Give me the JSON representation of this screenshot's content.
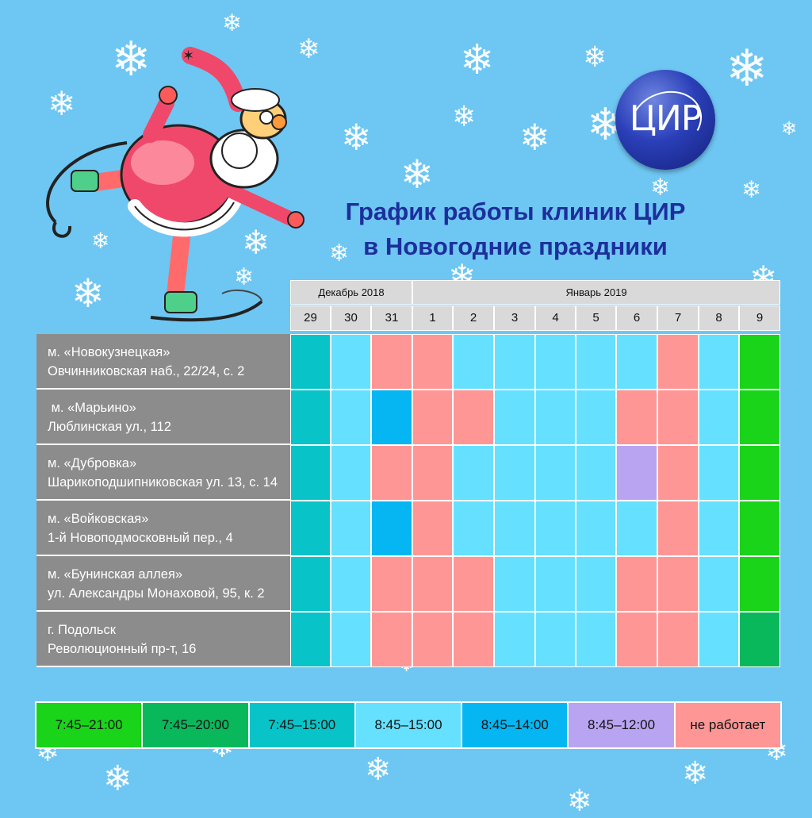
{
  "title": {
    "line1": "График работы клиник ЦИР",
    "line2": "в Новогодние праздники"
  },
  "logo": {
    "text": "ЦИР"
  },
  "months": [
    {
      "label": "Декабрь 2018",
      "span": 3
    },
    {
      "label": "Январь 2019",
      "span": 9
    }
  ],
  "days": [
    "29",
    "30",
    "31",
    "1",
    "2",
    "3",
    "4",
    "5",
    "6",
    "7",
    "8",
    "9"
  ],
  "colors": {
    "g1": "#19d419",
    "g2": "#0ab85c",
    "t": "#08c4c8",
    "lb": "#66e0ff",
    "b": "#05b6f2",
    "v": "#b9a4f2",
    "r": "#ff9696"
  },
  "clinics": [
    {
      "line1": "м. «Новокузнецкая»",
      "line2": "Овчинниковская наб., 22/24, с. 2",
      "schedule": [
        "t",
        "lb",
        "r",
        "r",
        "lb",
        "lb",
        "lb",
        "lb",
        "lb",
        "r",
        "lb",
        "g1"
      ]
    },
    {
      "line1": " м. «Марьино»",
      "line2": "Люблинская ул., 112",
      "schedule": [
        "t",
        "lb",
        "b",
        "r",
        "r",
        "lb",
        "lb",
        "lb",
        "r",
        "r",
        "lb",
        "g1"
      ]
    },
    {
      "line1": "м. «Дубровка»",
      "line2": "Шарикоподшипниковская ул. 13, с. 14",
      "schedule": [
        "t",
        "lb",
        "r",
        "r",
        "lb",
        "lb",
        "lb",
        "lb",
        "v",
        "r",
        "lb",
        "g1"
      ]
    },
    {
      "line1": "м. «Войковская»",
      "line2": "1-й Новоподмосковный пер., 4",
      "schedule": [
        "t",
        "lb",
        "b",
        "r",
        "lb",
        "lb",
        "lb",
        "lb",
        "lb",
        "r",
        "lb",
        "g1"
      ]
    },
    {
      "line1": "м. «Бунинская аллея»",
      "line2": "ул. Александры Монаховой, 95, к. 2",
      "schedule": [
        "t",
        "lb",
        "r",
        "r",
        "r",
        "lb",
        "lb",
        "lb",
        "r",
        "r",
        "lb",
        "g1"
      ]
    },
    {
      "line1": "г. Подольск",
      "line2": "Революционный пр-т, 16",
      "schedule": [
        "t",
        "lb",
        "r",
        "r",
        "r",
        "lb",
        "lb",
        "lb",
        "r",
        "r",
        "lb",
        "g2"
      ]
    }
  ],
  "legend": [
    {
      "label": "7:45–21:00",
      "color": "g1"
    },
    {
      "label": "7:45–20:00",
      "color": "g2"
    },
    {
      "label": "7:45–15:00",
      "color": "t"
    },
    {
      "label": "8:45–15:00",
      "color": "lb"
    },
    {
      "label": "8:45–14:00",
      "color": "b"
    },
    {
      "label": "8:45–12:00",
      "color": "v"
    },
    {
      "label": "не работает",
      "color": "r"
    }
  ]
}
